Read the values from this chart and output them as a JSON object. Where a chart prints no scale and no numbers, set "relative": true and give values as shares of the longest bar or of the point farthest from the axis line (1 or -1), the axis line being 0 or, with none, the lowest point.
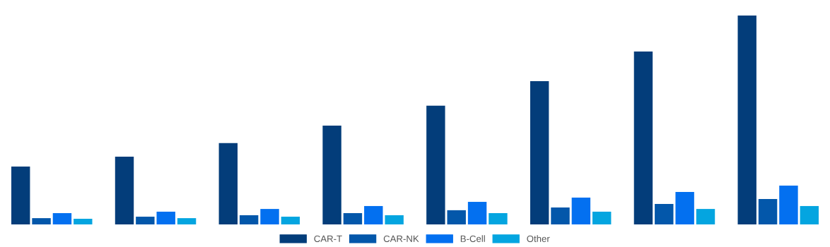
{
  "chart_data": {
    "type": "bar",
    "relative": true,
    "categories": [
      null,
      null,
      null,
      null,
      null,
      null,
      null,
      null
    ],
    "series": [
      {
        "name": "CAR-T",
        "color": "#033d7a",
        "values": [
          0.277,
          0.324,
          0.389,
          0.473,
          0.568,
          0.686,
          0.828,
          1
        ]
      },
      {
        "name": "CAR-NK",
        "color": "#0357aa",
        "values": [
          0.03,
          0.037,
          0.044,
          0.054,
          0.068,
          0.081,
          0.098,
          0.122
        ]
      },
      {
        "name": "B-Cell",
        "color": "#0370f0",
        "values": [
          0.054,
          0.061,
          0.074,
          0.088,
          0.108,
          0.128,
          0.155,
          0.186
        ]
      },
      {
        "name": "Other",
        "color": "#04a5e0",
        "values": [
          0.027,
          0.03,
          0.037,
          0.044,
          0.054,
          0.061,
          0.074,
          0.088
        ]
      }
    ],
    "legend": "bottom",
    "grid": false
  }
}
